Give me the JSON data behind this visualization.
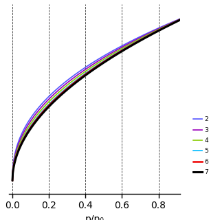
{
  "xlabel": "p/p₀",
  "xlim": [
    -0.02,
    0.92
  ],
  "ylim": [
    -0.08,
    1.05
  ],
  "x_ticks": [
    0.0,
    0.2,
    0.4,
    0.6,
    0.8
  ],
  "grid": true,
  "background_color": "#ffffff",
  "lines": [
    {
      "color": "#5555ff",
      "lw": 1.2,
      "label": "2"
    },
    {
      "color": "#9900bb",
      "lw": 1.2,
      "label": "3"
    },
    {
      "color": "#88cc00",
      "lw": 1.2,
      "label": "4"
    },
    {
      "color": "#00bbff",
      "lw": 1.2,
      "label": "5"
    },
    {
      "color": "#ee0000",
      "lw": 1.8,
      "label": "6"
    },
    {
      "color": "#000000",
      "lw": 2.2,
      "label": "7"
    }
  ],
  "exponents": [
    0.43,
    0.45,
    0.47,
    0.49,
    0.5,
    0.51
  ],
  "figsize": [
    3.2,
    3.2
  ],
  "dpi": 100
}
